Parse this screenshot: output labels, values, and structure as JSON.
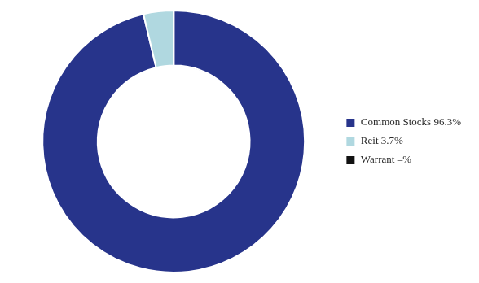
{
  "chart_data": {
    "type": "doughnut",
    "categories": [
      "Common Stocks 96.3%",
      "Reit 3.7%",
      "Warrant –%"
    ],
    "values": [
      96.3,
      3.7,
      0.001
    ],
    "colors": [
      "#27348b",
      "#b0d8e0",
      "#111111"
    ],
    "legend": "right"
  }
}
